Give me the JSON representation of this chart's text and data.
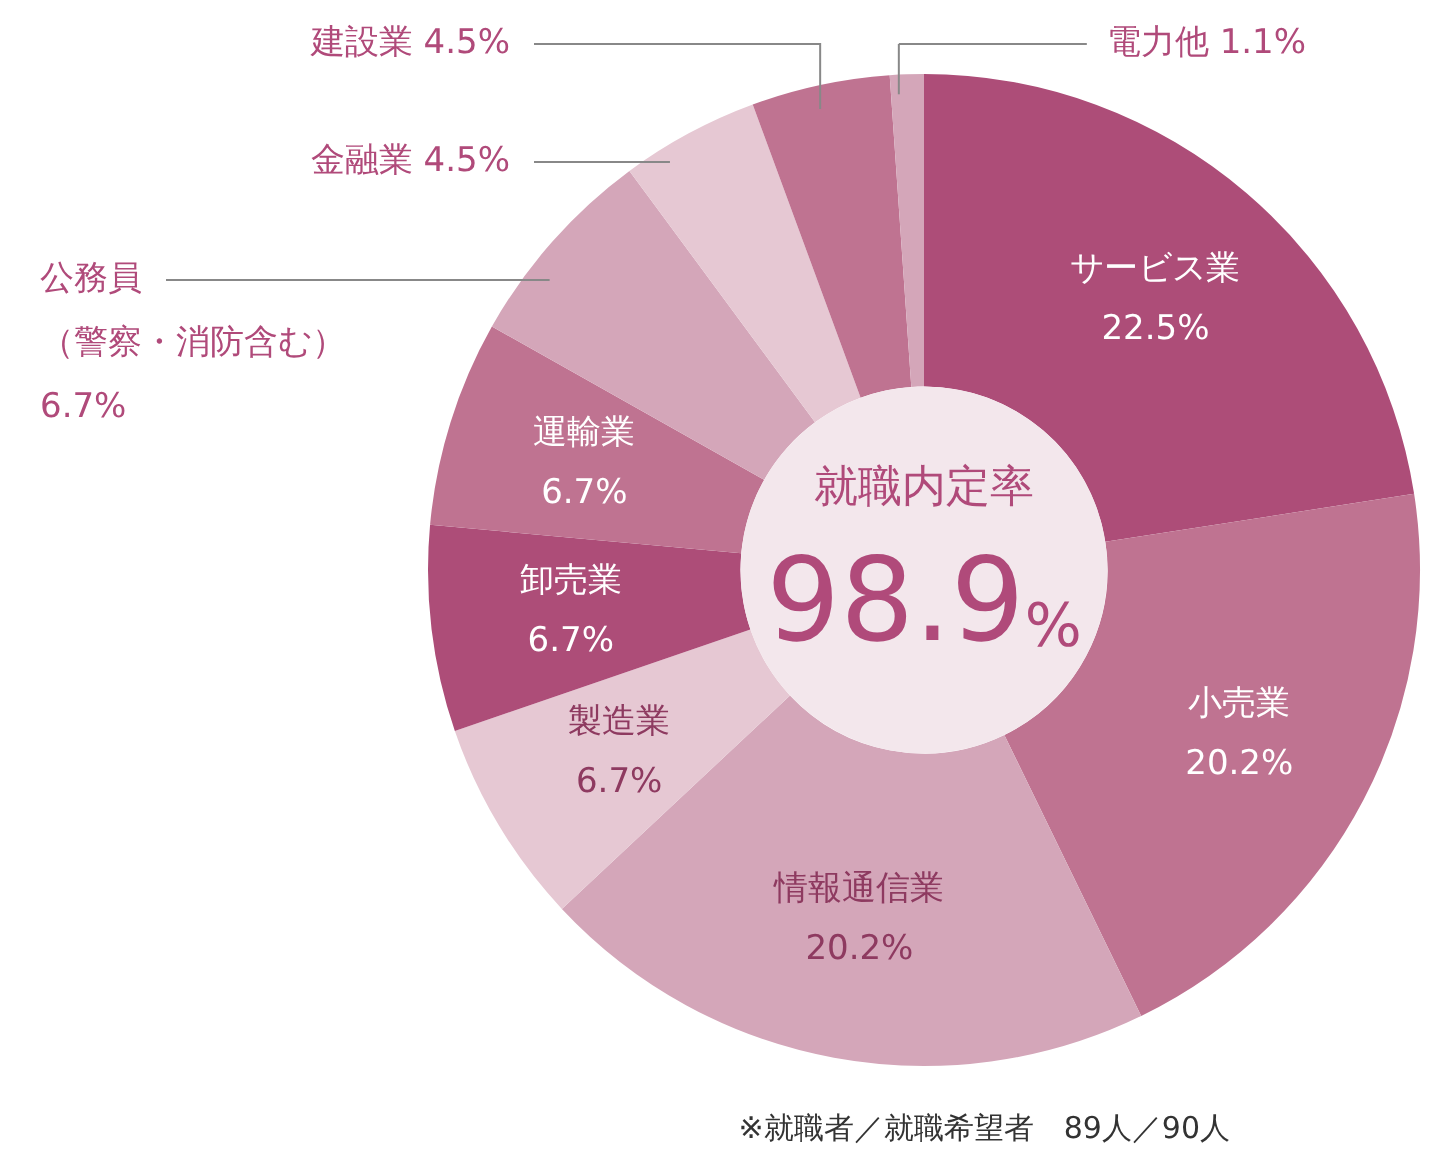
{
  "chart_data": {
    "type": "donut",
    "categories": [
      "サービス業",
      "小売業",
      "情報通信業",
      "製造業",
      "卸売業",
      "運輸業",
      "公務員（警察・消防含む）",
      "金融業",
      "建設業",
      "電力他"
    ],
    "values": [
      22.5,
      20.2,
      20.2,
      6.7,
      6.7,
      6.7,
      6.7,
      4.5,
      4.5,
      1.1
    ],
    "colors": [
      "#ad4d78",
      "#bf7391",
      "#d4a6b9",
      "#e6c8d3",
      "#ad4d78",
      "#bf7391",
      "#d4a6b9",
      "#e6c8d3",
      "#bf7391",
      "#d4a6b9"
    ],
    "value_labels": [
      "22.5%",
      "20.2%",
      "20.2%",
      "6.7%",
      "6.7%",
      "6.7%",
      "6.7%",
      "4.5%",
      "4.5%",
      "1.1%"
    ],
    "annotations": [
      "就職内定率",
      "98.9%",
      "※就職者／就職希望者　89人／90人"
    ],
    "legend": false
  }
}
